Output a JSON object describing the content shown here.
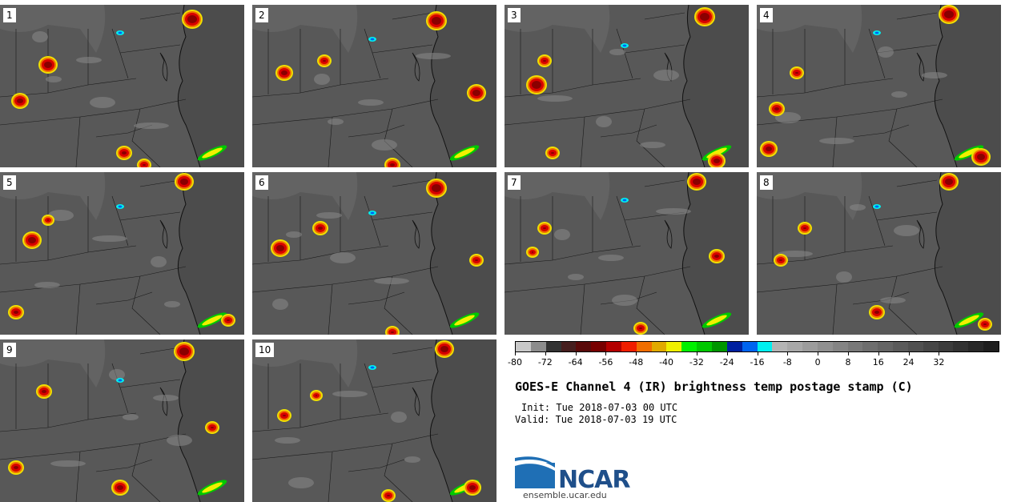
{
  "panels": [
    {
      "label": "1"
    },
    {
      "label": "2"
    },
    {
      "label": "3"
    },
    {
      "label": "4"
    },
    {
      "label": "5"
    },
    {
      "label": "6"
    },
    {
      "label": "7"
    },
    {
      "label": "8"
    },
    {
      "label": "9"
    },
    {
      "label": "10"
    }
  ],
  "colorbar": {
    "colors": [
      "#c8c8c8",
      "#8c8c8c",
      "#323232",
      "#461e1e",
      "#5a0a0a",
      "#780000",
      "#b40000",
      "#f01e00",
      "#f06e00",
      "#e1aa00",
      "#f0f000",
      "#00f000",
      "#00c800",
      "#009600",
      "#0020a0",
      "#0064f0",
      "#00f0f0",
      "#b4b4b4",
      "#a8a8a8",
      "#9c9c9c",
      "#909090",
      "#848484",
      "#787878",
      "#6e6e6e",
      "#646464",
      "#5a5a5a",
      "#505050",
      "#464646",
      "#3c3c3c",
      "#323232",
      "#282828",
      "#1e1e1e"
    ],
    "tick_labels": [
      "-80",
      "-72",
      "-64",
      "-56",
      "-48",
      "-40",
      "-32",
      "-24",
      "-16",
      "-8",
      "0",
      "8",
      "16",
      "24",
      "32"
    ]
  },
  "title": "GOES-E Channel 4 (IR) brightness temp postage stamp (C)",
  "init": "Init: Tue 2018-07-03 00 UTC",
  "valid": "Valid: Tue 2018-07-03 19 UTC",
  "logo": {
    "text": "NCAR",
    "url": "ensemble.ucar.edu",
    "color": "#1f4f8a"
  }
}
